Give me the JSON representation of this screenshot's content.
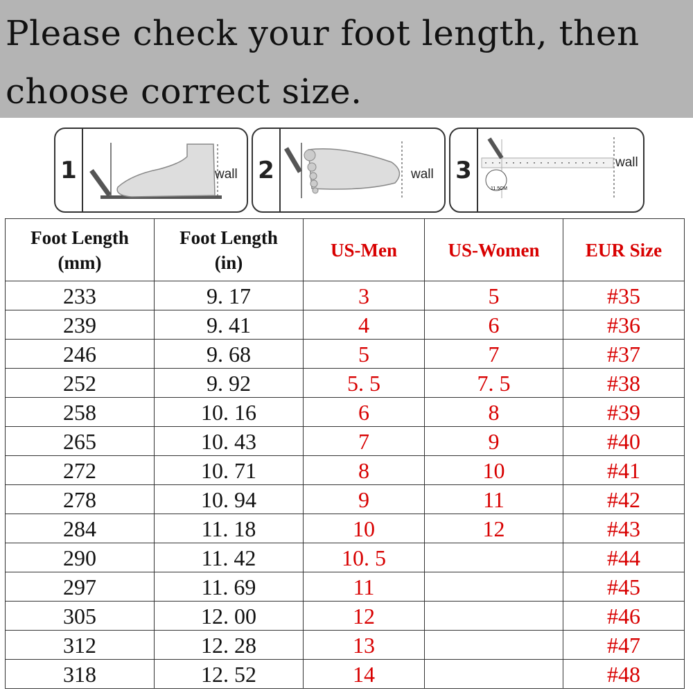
{
  "banner": {
    "text": "Please check your foot length, then choose correct size."
  },
  "steps": [
    {
      "number": "1",
      "label": "wall",
      "icon": "foot-side-measure-icon"
    },
    {
      "number": "2",
      "label": "wall",
      "icon": "foot-top-measure-icon"
    },
    {
      "number": "3",
      "label": "wall",
      "measure": "11.5CM",
      "icon": "ruler-measure-icon"
    }
  ],
  "table": {
    "headers": [
      {
        "line1": "Foot Length",
        "line2": "(mm)"
      },
      {
        "line1": "Foot Length",
        "line2": "(in)"
      },
      {
        "line1": "US-Men",
        "line2": ""
      },
      {
        "line1": "US-Women",
        "line2": ""
      },
      {
        "line1": "EUR Size",
        "line2": ""
      }
    ],
    "rows": [
      [
        "233",
        "9. 17",
        "3",
        "5",
        "#35"
      ],
      [
        "239",
        "9. 41",
        "4",
        "6",
        "#36"
      ],
      [
        "246",
        "9. 68",
        "5",
        "7",
        "#37"
      ],
      [
        "252",
        "9. 92",
        "5. 5",
        "7. 5",
        "#38"
      ],
      [
        "258",
        "10. 16",
        "6",
        "8",
        "#39"
      ],
      [
        "265",
        "10. 43",
        "7",
        "9",
        "#40"
      ],
      [
        "272",
        "10. 71",
        "8",
        "10",
        "#41"
      ],
      [
        "278",
        "10. 94",
        "9",
        "11",
        "#42"
      ],
      [
        "284",
        "11. 18",
        "10",
        "12",
        "#43"
      ],
      [
        "290",
        "11. 42",
        "10. 5",
        "",
        "#44"
      ],
      [
        "297",
        "11. 69",
        "11",
        "",
        "#45"
      ],
      [
        "305",
        "12. 00",
        "12",
        "",
        "#46"
      ],
      [
        "312",
        "12. 28",
        "13",
        "",
        "#47"
      ],
      [
        "318",
        "12. 52",
        "14",
        "",
        "#48"
      ]
    ]
  },
  "colors": {
    "banner": "#b4b4b4",
    "accent_red": "#d80000"
  }
}
